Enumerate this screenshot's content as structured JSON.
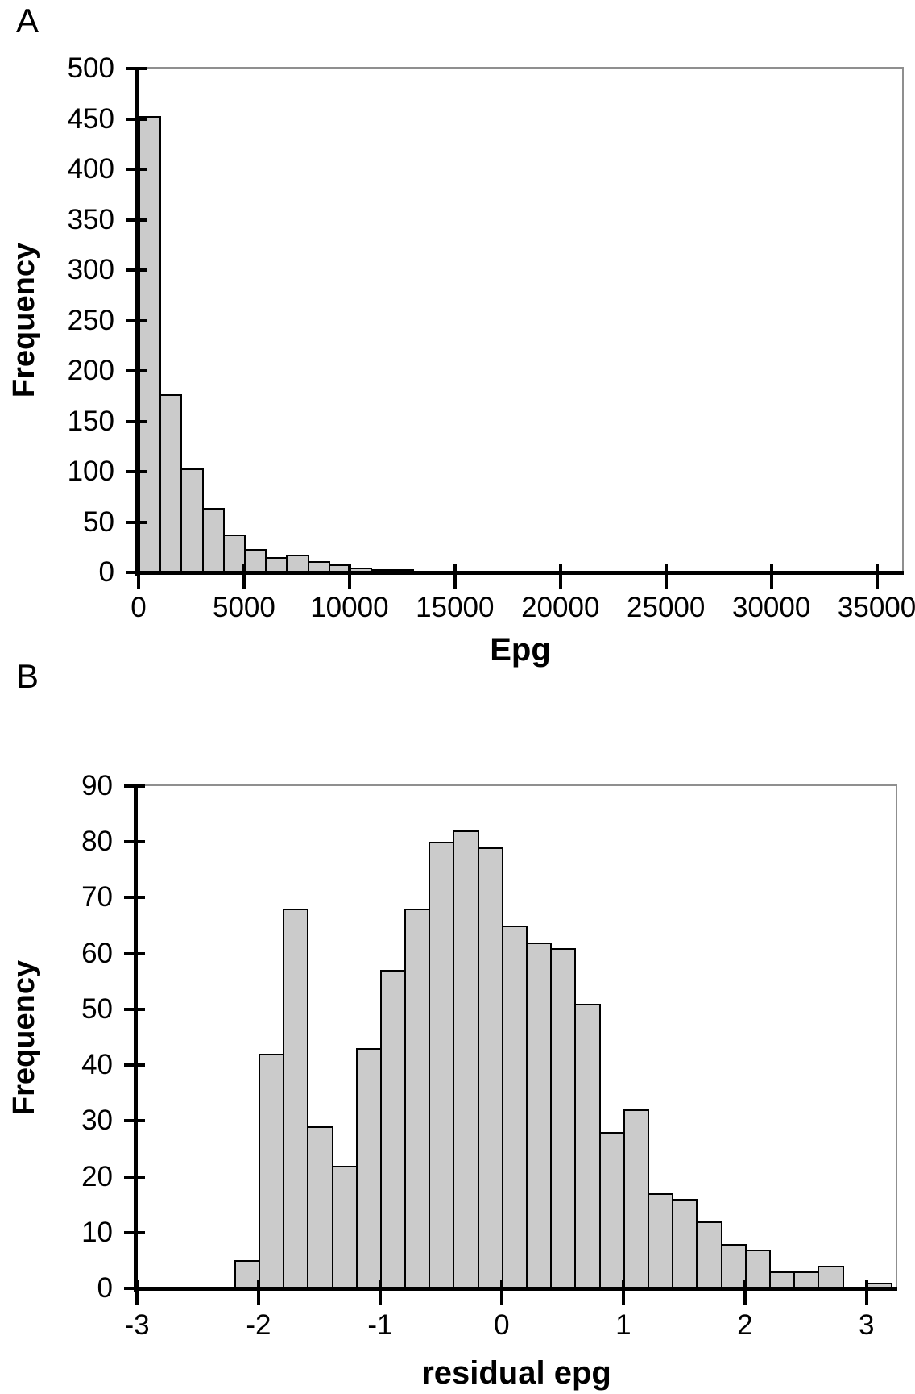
{
  "figure": {
    "background": "#ffffff",
    "text_color": "#000000"
  },
  "chart_data": [
    {
      "type": "histogram",
      "panel_label": "A",
      "xlabel": "Epg",
      "ylabel": "Frequency",
      "bin_start": 0,
      "bin_width": 1000,
      "values": [
        453,
        177,
        103,
        64,
        38,
        23,
        15,
        18,
        11,
        8,
        5,
        3,
        3,
        2,
        2,
        2,
        1,
        1,
        1,
        0,
        0,
        0,
        2,
        1,
        1,
        0,
        0,
        1,
        1,
        1,
        1,
        0,
        0,
        0,
        1,
        2
      ],
      "x_ticks": [
        0,
        5000,
        10000,
        15000,
        20000,
        25000,
        30000,
        35000
      ],
      "y_ticks": [
        0,
        50,
        100,
        150,
        200,
        250,
        300,
        350,
        400,
        450,
        500
      ],
      "xlim": [
        0,
        36200
      ],
      "ylim": [
        0,
        500
      ],
      "legend": "none",
      "grid": "top-frame-line-only",
      "bar_fill": "#cbcbcb",
      "bar_stroke": "#000000",
      "axis_color": "#000000",
      "frame_color": "#8f8f8f"
    },
    {
      "type": "histogram",
      "panel_label": "B",
      "xlabel": "residual epg",
      "ylabel": "Frequency",
      "bin_start": -2.2,
      "bin_width": 0.2,
      "values": [
        5,
        42,
        68,
        29,
        22,
        43,
        57,
        68,
        80,
        82,
        79,
        65,
        62,
        61,
        51,
        28,
        32,
        17,
        16,
        12,
        8,
        7,
        3,
        3,
        4,
        0,
        1
      ],
      "x_ticks": [
        -3,
        -2,
        -1,
        0,
        1,
        2,
        3
      ],
      "y_ticks": [
        0,
        10,
        20,
        30,
        40,
        50,
        60,
        70,
        80,
        90
      ],
      "xlim": [
        -3,
        3.24
      ],
      "ylim": [
        0,
        90
      ],
      "legend": "none",
      "grid": "top-frame-line-only",
      "bar_fill": "#cbcbcb",
      "bar_stroke": "#000000",
      "axis_color": "#000000",
      "frame_color": "#8f8f8f"
    }
  ]
}
